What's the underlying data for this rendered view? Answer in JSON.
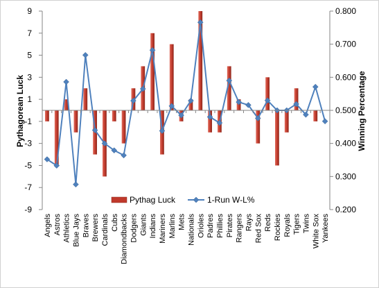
{
  "chart_data": {
    "type": "bar",
    "categories": [
      "Angels",
      "Astros",
      "Athletics",
      "Blue Jays",
      "Braves",
      "Brewers",
      "Cardinals",
      "Cubs",
      "Diamondbacks",
      "Dodgers",
      "Giants",
      "Indians",
      "Mariners",
      "Marlins",
      "Mets",
      "Nationals",
      "Orioles",
      "Padres",
      "Phillies",
      "Pirates",
      "Rangers",
      "Rays",
      "Red Sox",
      "Reds",
      "Rockies",
      "Royals",
      "Tigers",
      "Twins",
      "White Sox",
      "Yankees"
    ],
    "series": [
      {
        "name": "Pythag Luck",
        "type": "bar",
        "axis": "left",
        "color": "#c0392b",
        "values": [
          -1,
          -5,
          1,
          -2,
          2,
          -4,
          -6,
          -1,
          -3,
          2,
          4,
          7,
          -4,
          6,
          -1,
          1,
          9,
          -2,
          -2,
          4,
          1,
          0,
          -3,
          3,
          -5,
          -2,
          2,
          0,
          -1,
          0
        ]
      },
      {
        "name": "1-Run W-L%",
        "type": "line",
        "axis": "right",
        "color": "#4f81bd",
        "values": [
          0.352,
          0.333,
          0.586,
          0.276,
          0.667,
          0.44,
          0.4,
          0.379,
          0.364,
          0.529,
          0.565,
          0.682,
          0.438,
          0.513,
          0.485,
          0.529,
          0.766,
          0.48,
          0.462,
          0.59,
          0.525,
          0.516,
          0.476,
          0.53,
          0.5,
          0.5,
          0.519,
          0.487,
          0.571,
          0.467
        ]
      }
    ],
    "ylabel": "Pythagorean Luck",
    "ylabel_right": "Winning Percentage",
    "ylim": [
      -9,
      9
    ],
    "ylim_right": [
      0.2,
      0.8
    ],
    "yticks": [
      "9",
      "7",
      "5",
      "3",
      "1",
      "-1",
      "-3",
      "-5",
      "-7",
      "-9"
    ],
    "yticks_right": [
      "0.800",
      "0.700",
      "0.600",
      "0.500",
      "0.400",
      "0.300",
      "0.200"
    ],
    "legend_position": "bottom-inside",
    "grid": false
  }
}
